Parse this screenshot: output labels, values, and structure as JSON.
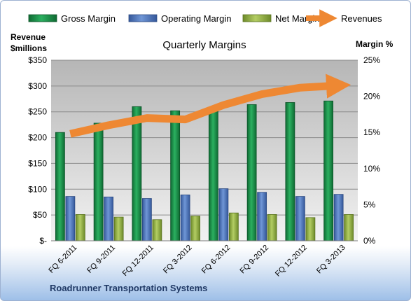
{
  "chart_data": {
    "type": "bar",
    "title": "Quarterly Margins",
    "categories": [
      "FQ 6-2011",
      "FQ 9-2011",
      "FQ 12-2011",
      "FQ 3-2012",
      "FQ 6-2012",
      "FQ 9-2012",
      "FQ 12-2012",
      "FQ 3-2013"
    ],
    "series": [
      {
        "name": "Gross Margin",
        "axis": "left",
        "values": [
          210,
          228,
          260,
          252,
          252,
          264,
          268,
          271
        ]
      },
      {
        "name": "Operating Margin",
        "axis": "left",
        "values": [
          86,
          85,
          82,
          89,
          101,
          94,
          86,
          90
        ]
      },
      {
        "name": "Net Margin",
        "axis": "left",
        "values": [
          51,
          46,
          41,
          48,
          54,
          51,
          45,
          51
        ]
      },
      {
        "name": "Revenues",
        "axis": "right",
        "type": "line",
        "values": [
          14.8,
          16.0,
          17.0,
          16.8,
          18.8,
          20.3,
          21.2,
          21.5
        ]
      }
    ],
    "ylabel_left": "Revenue\n$millions",
    "ylabel_right": "Margin %",
    "ylim_left": [
      0,
      350
    ],
    "ylim_right": [
      0,
      25
    ],
    "yticks_left": [
      "$-",
      "$50",
      "$100",
      "$150",
      "$200",
      "$250",
      "$300",
      "$350"
    ],
    "yticks_right": [
      "0%",
      "5%",
      "10%",
      "15%",
      "20%",
      "25%"
    ],
    "legend_position": "top",
    "grid": true,
    "colors": {
      "gross": "#1e8a4a",
      "operating": "#4a72b5",
      "net": "#8cac3e",
      "revenues": "#ee8833",
      "plot_bg_top": "#b8b8b8",
      "plot_bg_bottom": "#f0f0f0"
    }
  },
  "footer": {
    "company": "Roadrunner Transportation Systems"
  }
}
